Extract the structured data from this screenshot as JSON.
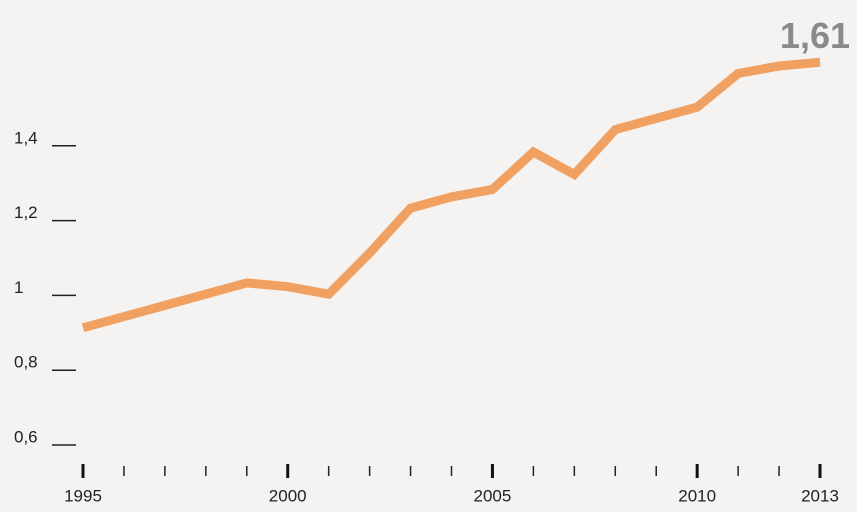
{
  "chart_data": {
    "type": "line",
    "x": [
      1995,
      1996,
      1997,
      1998,
      1999,
      2000,
      2001,
      2002,
      2003,
      2004,
      2005,
      2006,
      2007,
      2008,
      2009,
      2010,
      2011,
      2012,
      2013
    ],
    "series": [
      {
        "color": "#f0a060",
        "values": [
          0.9,
          0.93,
          0.96,
          0.99,
          1.02,
          1.01,
          0.99,
          1.1,
          1.22,
          1.25,
          1.27,
          1.37,
          1.31,
          1.43,
          1.46,
          1.49,
          1.58,
          1.6,
          1.61
        ],
        "value_labels": [
          null,
          null,
          null,
          null,
          null,
          null,
          null,
          null,
          null,
          null,
          null,
          null,
          null,
          null,
          null,
          null,
          null,
          null,
          "1,61"
        ]
      }
    ],
    "xlim": [
      1995,
      2013
    ],
    "xticks": [
      1995,
      2000,
      2005,
      2010,
      2013
    ],
    "ylim": [
      0.55,
      1.7
    ],
    "yticks": [
      {
        "value": 0.6,
        "label": "0,6"
      },
      {
        "value": 0.8,
        "label": "0,8"
      },
      1,
      {
        "value": 1.2,
        "label": "1,2"
      },
      {
        "value": 1.4,
        "label": "1,4"
      }
    ]
  }
}
